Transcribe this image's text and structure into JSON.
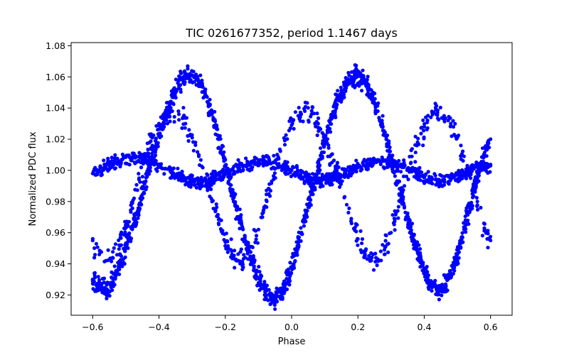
{
  "chart_data": {
    "type": "scatter",
    "title": "TIC 0261677352, period 1.1467 days",
    "xlabel": "Phase",
    "ylabel": "Normalized PDC flux",
    "xlim": [
      -0.665,
      0.665
    ],
    "ylim": [
      0.907,
      1.082
    ],
    "x_ticks": [
      -0.6,
      -0.4,
      -0.2,
      0.0,
      0.2,
      0.4,
      0.6
    ],
    "x_tick_labels": [
      "−0.6",
      "−0.4",
      "−0.2",
      "0.0",
      "0.2",
      "0.4",
      "0.6"
    ],
    "y_ticks": [
      0.92,
      0.94,
      0.96,
      0.98,
      1.0,
      1.02,
      1.04,
      1.06,
      1.08
    ],
    "y_tick_labels": [
      "0.92",
      "0.94",
      "0.96",
      "0.98",
      "1.00",
      "1.02",
      "1.04",
      "1.06",
      "1.08"
    ],
    "marker_color": "#0000ff",
    "grid": false,
    "series": [
      {
        "name": "main-sinusoid",
        "description_points": "phase vs flux along dominant variation",
        "x": [
          -0.6,
          -0.58,
          -0.56,
          -0.54,
          -0.52,
          -0.5,
          -0.48,
          -0.46,
          -0.44,
          -0.42,
          -0.4,
          -0.38,
          -0.36,
          -0.34,
          -0.32,
          -0.3,
          -0.28,
          -0.26,
          -0.24,
          -0.22,
          -0.2,
          -0.18,
          -0.16,
          -0.14,
          -0.12,
          -0.1,
          -0.08,
          -0.06,
          -0.04,
          -0.02,
          0.0,
          0.02,
          0.04,
          0.06,
          0.08,
          0.1,
          0.12,
          0.14,
          0.16,
          0.18,
          0.2,
          0.22,
          0.24,
          0.26,
          0.28,
          0.3,
          0.32,
          0.34,
          0.36,
          0.38,
          0.4,
          0.42,
          0.44,
          0.46,
          0.48,
          0.5,
          0.52,
          0.54,
          0.56,
          0.58,
          0.6
        ],
        "y": [
          0.93,
          0.925,
          0.923,
          0.928,
          0.938,
          0.95,
          0.963,
          0.978,
          0.993,
          1.008,
          1.022,
          1.036,
          1.047,
          1.055,
          1.06,
          1.061,
          1.057,
          1.048,
          1.036,
          1.02,
          1.003,
          0.986,
          0.97,
          0.955,
          0.942,
          0.931,
          0.922,
          0.917,
          0.919,
          0.926,
          0.938,
          0.952,
          0.968,
          0.985,
          1.002,
          1.018,
          1.033,
          1.045,
          1.054,
          1.06,
          1.061,
          1.057,
          1.049,
          1.038,
          1.024,
          1.008,
          0.992,
          0.976,
          0.961,
          0.948,
          0.936,
          0.927,
          0.922,
          0.925,
          0.933,
          0.946,
          0.962,
          0.979,
          0.996,
          1.01,
          1.02
        ]
      },
      {
        "name": "secondary-sinusoid",
        "description_points": "phase vs flux along offset variation",
        "x": [
          -0.6,
          -0.58,
          -0.56,
          -0.54,
          -0.52,
          -0.5,
          -0.48,
          -0.46,
          -0.44,
          -0.42,
          -0.4,
          -0.38,
          -0.36,
          -0.34,
          -0.32,
          -0.3,
          -0.28,
          -0.26,
          -0.24,
          -0.22,
          -0.2,
          -0.18,
          -0.16,
          -0.14,
          -0.12,
          -0.1,
          -0.08,
          -0.06,
          -0.04,
          -0.02,
          0.0,
          0.02,
          0.04,
          0.06,
          0.08,
          0.1,
          0.12,
          0.14,
          0.16,
          0.18,
          0.2,
          0.22,
          0.24,
          0.26,
          0.28,
          0.3,
          0.32,
          0.34,
          0.36,
          0.38,
          0.4,
          0.42,
          0.44,
          0.46,
          0.48,
          0.5,
          0.52,
          0.54,
          0.56,
          0.58,
          0.6
        ],
        "y": [
          0.955,
          0.946,
          0.942,
          0.944,
          0.952,
          0.964,
          0.979,
          0.995,
          1.009,
          1.021,
          1.03,
          1.036,
          1.038,
          1.036,
          1.03,
          1.021,
          1.009,
          0.995,
          0.98,
          0.966,
          0.954,
          0.946,
          0.942,
          0.944,
          0.951,
          0.962,
          0.977,
          0.993,
          1.008,
          1.02,
          1.029,
          1.035,
          1.038,
          1.036,
          1.03,
          1.021,
          1.01,
          0.997,
          0.983,
          0.969,
          0.956,
          0.947,
          0.942,
          0.943,
          0.949,
          0.96,
          0.974,
          0.99,
          1.005,
          1.018,
          1.028,
          1.034,
          1.037,
          1.035,
          1.03,
          1.021,
          1.009,
          0.995,
          0.98,
          0.966,
          0.955
        ]
      },
      {
        "name": "flat-band",
        "description_points": "phase vs flux near unity",
        "x": [
          -0.6,
          -0.56,
          -0.52,
          -0.48,
          -0.44,
          -0.4,
          -0.36,
          -0.32,
          -0.28,
          -0.24,
          -0.2,
          -0.16,
          -0.12,
          -0.08,
          -0.04,
          0.0,
          0.04,
          0.08,
          0.12,
          0.16,
          0.2,
          0.24,
          0.28,
          0.32,
          0.36,
          0.4,
          0.44,
          0.48,
          0.52,
          0.56,
          0.6
        ],
        "y": [
          0.998,
          1.003,
          1.006,
          1.008,
          1.007,
          1.003,
          0.998,
          0.994,
          0.992,
          0.994,
          0.998,
          1.002,
          1.005,
          1.006,
          1.004,
          1.0,
          0.996,
          0.994,
          0.995,
          0.998,
          1.002,
          1.005,
          1.006,
          1.004,
          1.0,
          0.996,
          0.993,
          0.994,
          0.998,
          1.002,
          1.003
        ]
      }
    ],
    "annotations": []
  }
}
